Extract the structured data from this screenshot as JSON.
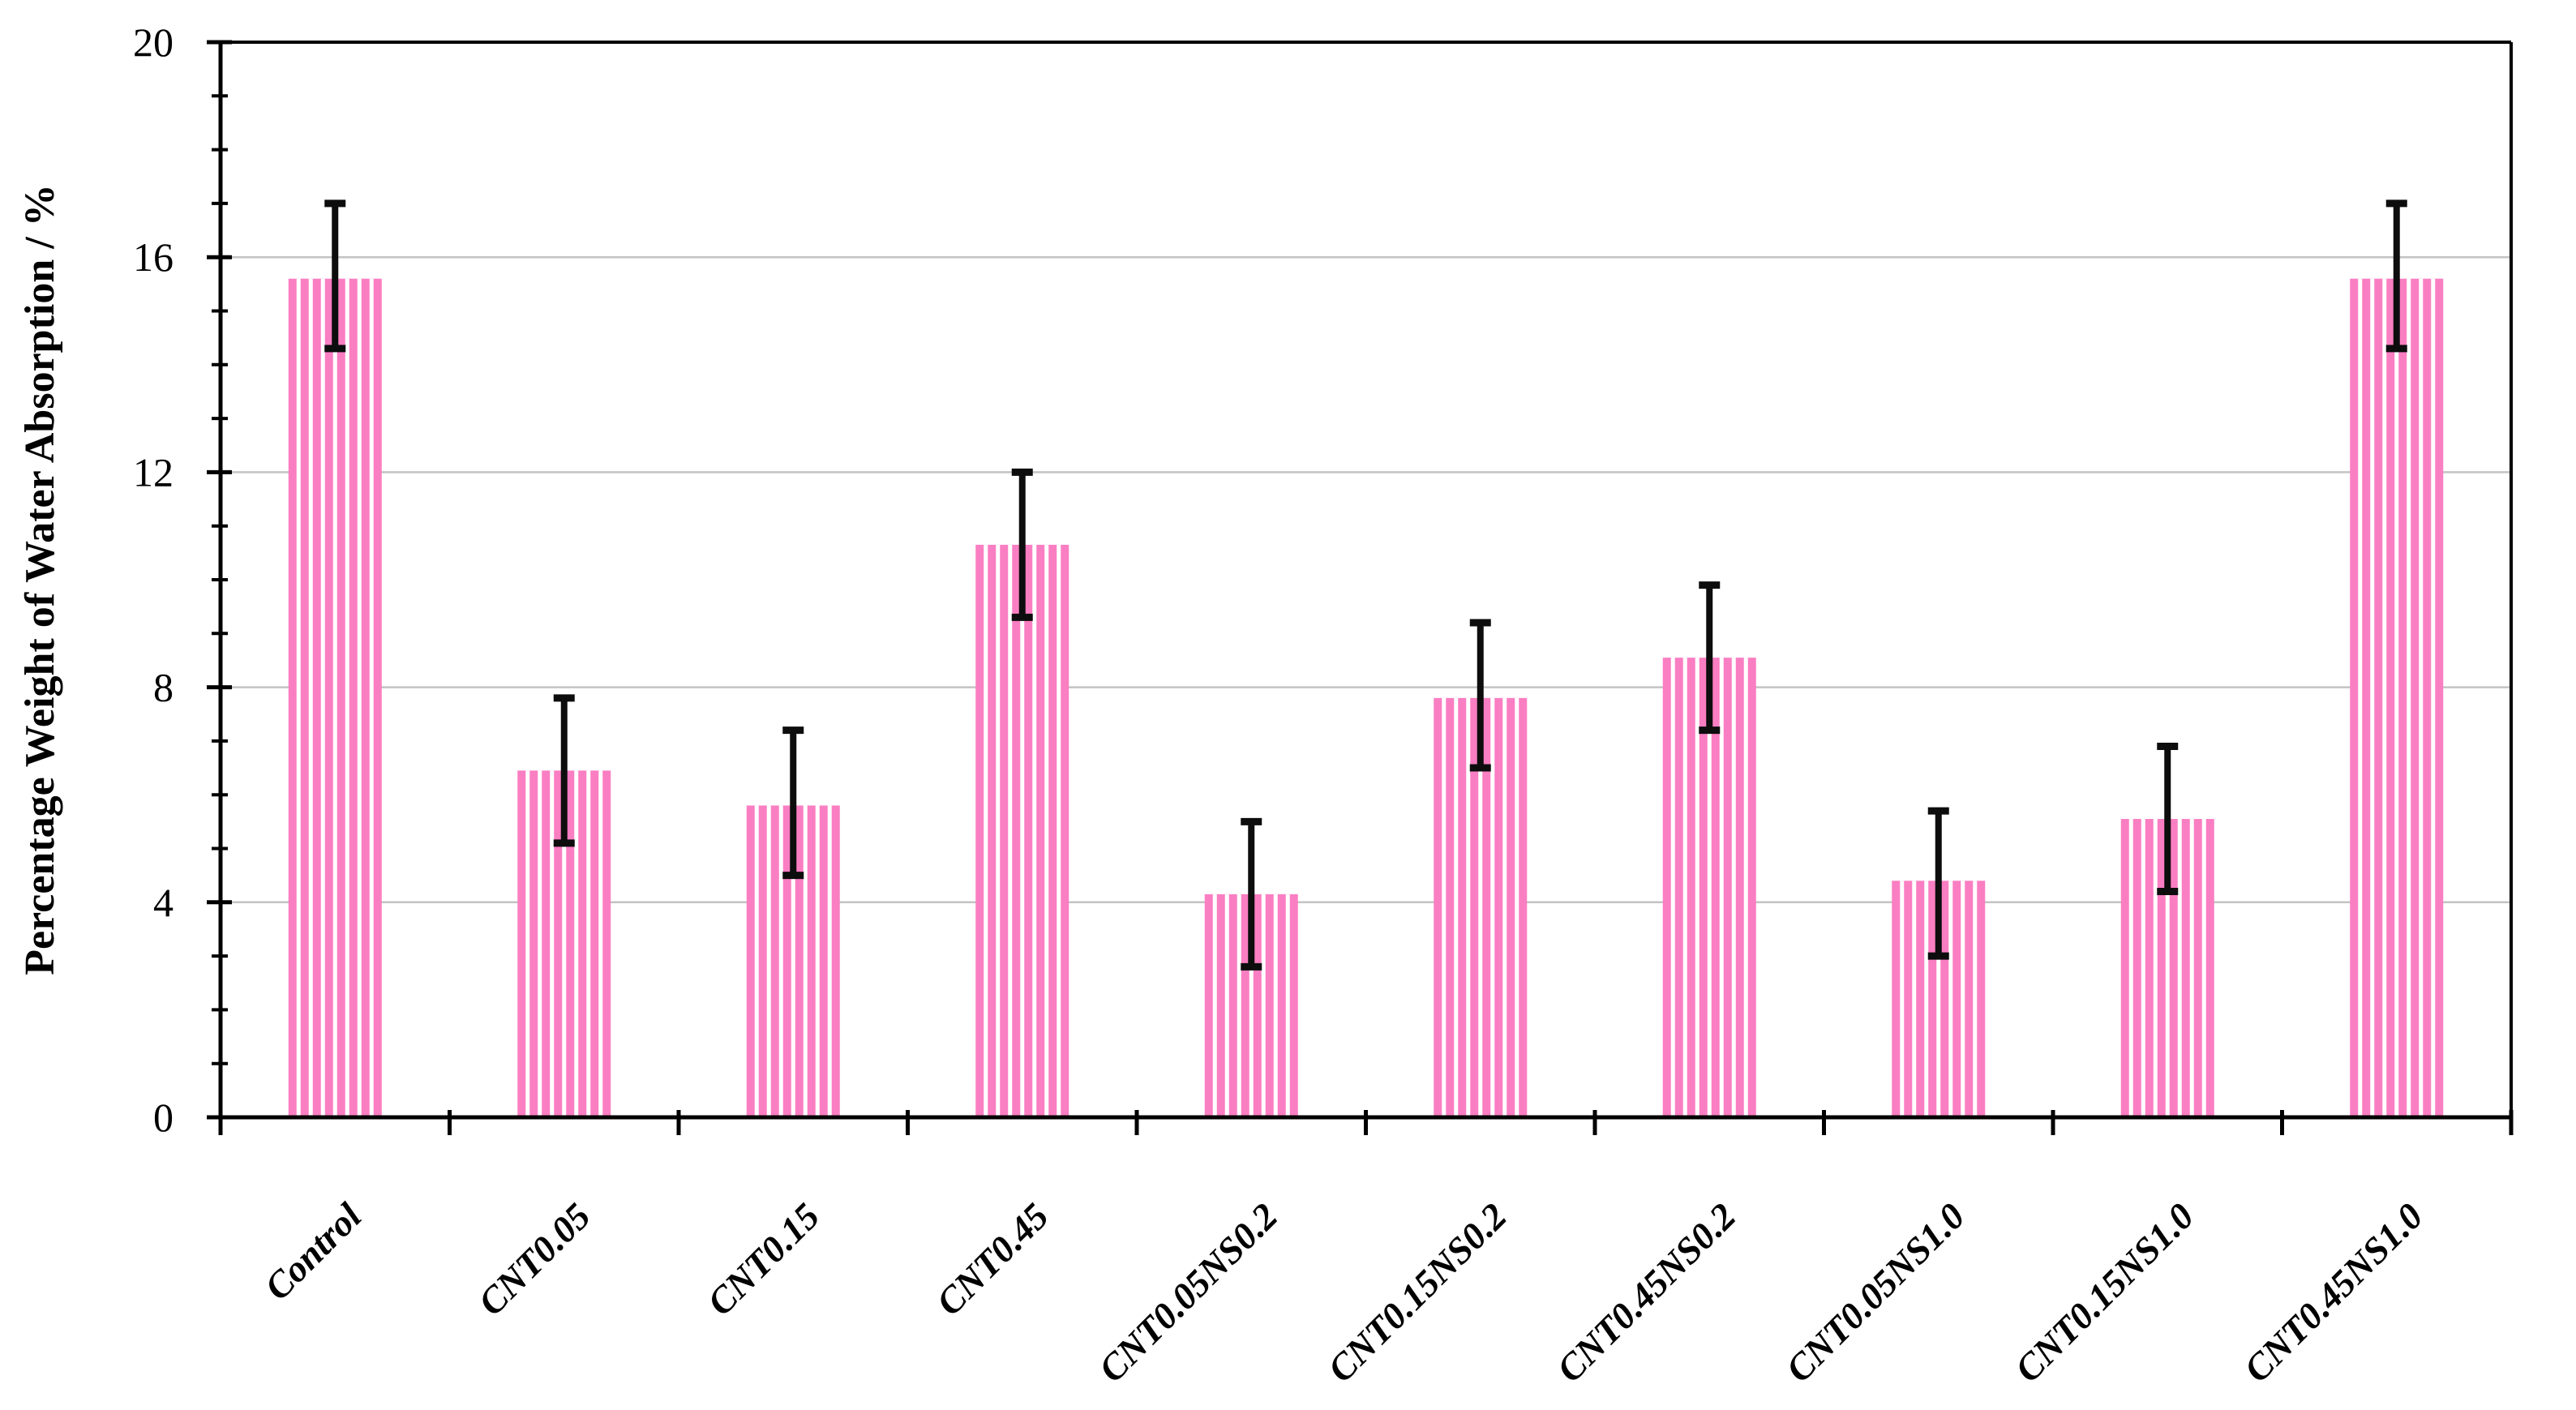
{
  "chart_data": {
    "type": "bar",
    "title": "",
    "xlabel": "",
    "ylabel": "Percentage Weight of Water Absorption / %",
    "ylim": [
      0,
      20
    ],
    "ytick_major": [
      0,
      4,
      8,
      12,
      16,
      20
    ],
    "ytick_minor_step": 1,
    "gridlines_y": [
      4,
      8,
      12,
      16
    ],
    "grid_on": true,
    "legend_position": "none",
    "categories": [
      "Control",
      "CNT0.05",
      "CNT0.15",
      "CNT0.45",
      "CNT0.05NS0.2",
      "CNT0.15NS0.2",
      "CNT0.45NS0.2",
      "CNT0.05NS1.0",
      "CNT0.15NS1.0",
      "CNT0.45NS1.0"
    ],
    "values": [
      15.6,
      6.45,
      5.8,
      10.65,
      4.15,
      7.8,
      8.55,
      4.4,
      5.55,
      15.6
    ],
    "error_low": [
      14.3,
      5.1,
      4.5,
      9.3,
      2.8,
      6.5,
      7.2,
      3.0,
      4.2,
      14.3
    ],
    "error_high": [
      17.0,
      7.8,
      7.2,
      12.0,
      5.5,
      9.2,
      9.9,
      5.7,
      6.9,
      17.0
    ],
    "bar_style": "vertical white hatch stripes on pink",
    "colors": {
      "bar_fill": "#FA7EC2",
      "bar_hatch": "#FFFFFF",
      "gridline": "#C3C3C3",
      "axis": "#000000",
      "error_bar": "#0D0D0D",
      "background": "#FFFFFF"
    }
  }
}
